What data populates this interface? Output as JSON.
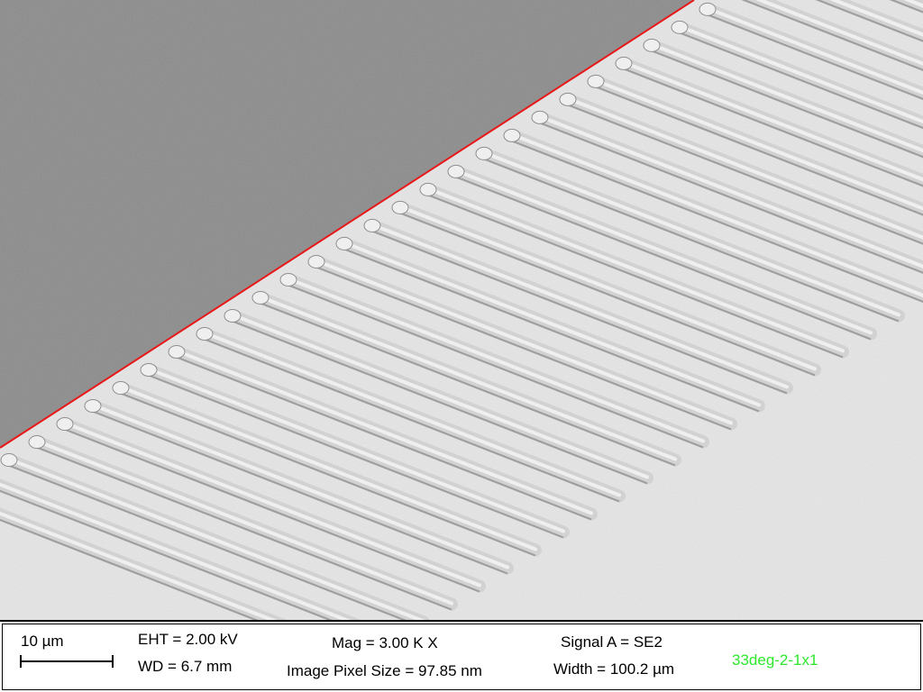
{
  "image": {
    "subject": "SEM micrograph of parallel line array",
    "colors": {
      "substrate": "#8c8c8c",
      "background": "#e6e6e6",
      "line_fill": "#d4d4d4",
      "line_highlight": "#f4f4f4",
      "edge_marker": "#e81818"
    }
  },
  "info_bar": {
    "scale_label": "10 µm",
    "eht": "EHT =  2.00 kV",
    "wd": "WD =  6.7 mm",
    "mag": "Mag =    3.00 K X",
    "pixel_size": "Image Pixel Size = 97.85 nm",
    "signal": "Signal A = SE2",
    "width": "Width = 100.2 µm",
    "sample_name": "33deg-2-1x1",
    "sample_color": "#2ee82e"
  }
}
